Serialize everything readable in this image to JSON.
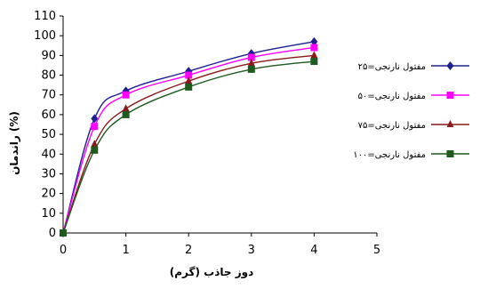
{
  "chart_data": {
    "type": "line",
    "title": "",
    "xlabel": "دوز جاذب (گرم)",
    "ylabel": "راندمان (%)",
    "xlim": [
      0,
      5
    ],
    "ylim": [
      0,
      110
    ],
    "xticks": [
      0,
      1,
      2,
      3,
      4,
      5
    ],
    "yticks": [
      0,
      10,
      20,
      30,
      40,
      50,
      60,
      70,
      80,
      90,
      100,
      110
    ],
    "grid": false,
    "legend": "right",
    "x": [
      0,
      0.5,
      1,
      2,
      3,
      4
    ],
    "series": [
      {
        "name": "مفتول نارنجی=۲۵",
        "values": [
          0,
          58,
          72,
          82,
          91,
          97
        ],
        "color": "#1f1f8f",
        "marker": "diamond"
      },
      {
        "name": "مفتول نارنجی=۵۰",
        "values": [
          0,
          54,
          70,
          80,
          89,
          94
        ],
        "color": "#ff00ff",
        "marker": "square"
      },
      {
        "name": "مفتول نارنجی=۷۵",
        "values": [
          0,
          45,
          63,
          77,
          86,
          90
        ],
        "color": "#8b1a1a",
        "marker": "triangle"
      },
      {
        "name": "مفتول نارنجی=۱۰۰",
        "values": [
          0,
          42,
          60,
          74,
          83,
          87
        ],
        "color": "#1f5a1f",
        "marker": "square"
      }
    ]
  }
}
